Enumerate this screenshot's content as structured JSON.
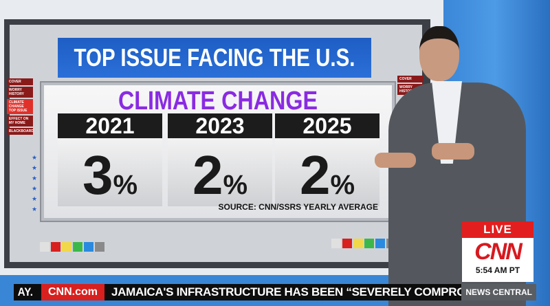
{
  "graphic": {
    "title": "TOP ISSUE FACING THE U.S.",
    "headline": "CLIMATE CHANGE",
    "columns": [
      {
        "year": "2021",
        "value": "3",
        "unit": "%"
      },
      {
        "year": "2023",
        "value": "2",
        "unit": "%"
      },
      {
        "year": "2025",
        "value": "2",
        "unit": "%"
      }
    ],
    "source": "SOURCE: CNN/SSRS YEARLY AVERAGE",
    "left_nav": [
      {
        "label": "COVER"
      },
      {
        "label": "WORRY HISTORY"
      },
      {
        "label": "CLIMATE CHANGE TOP ISSUE",
        "active": true
      },
      {
        "label": "EFFECT ON MY HOME"
      },
      {
        "label": "BLACKBOARD"
      }
    ],
    "right_nav": [
      {
        "label": "COVER"
      },
      {
        "label": "WORRY HISTORY"
      }
    ],
    "accent_color": "#8a2be2",
    "swatches": [
      "#e0e0e0",
      "#d8201e",
      "#f0d84a",
      "#3cb84a",
      "#2a8ae0",
      "#8a8a8a"
    ]
  },
  "bug": {
    "live": "LIVE",
    "network": "CNN",
    "time": "5:54 AM PT"
  },
  "ticker": {
    "prev": "AY.",
    "brand": "CNN.com",
    "headline": "JAMAICA'S INFRASTRUCTURE HAS BEEN “SEVERELY COMPROMISED”",
    "show": "NEWS CENTRAL"
  }
}
